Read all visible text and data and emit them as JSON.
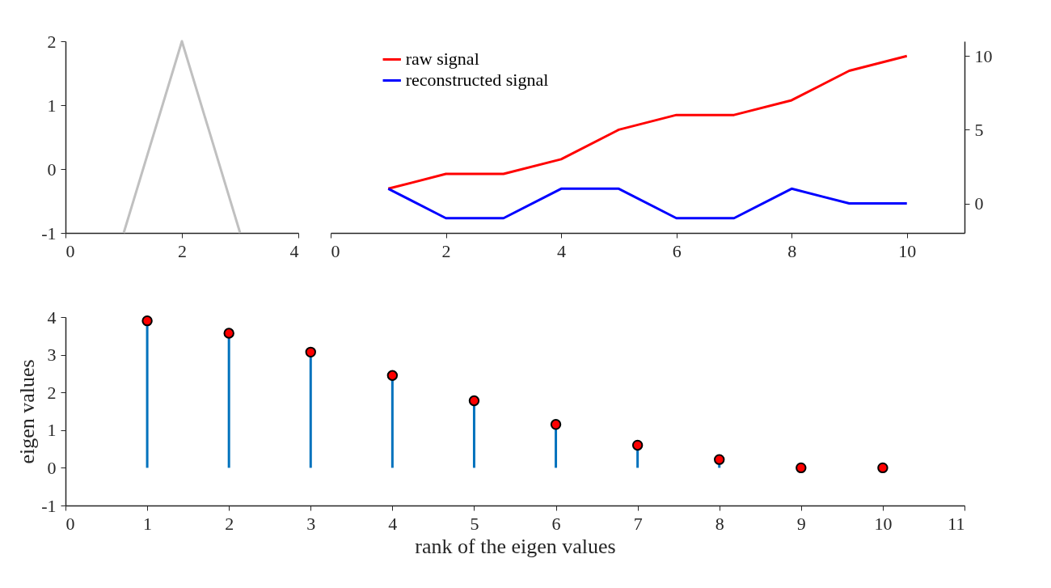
{
  "chart_data": [
    {
      "type": "line",
      "x": [
        1,
        2,
        3
      ],
      "series": [
        {
          "color": "#c0c0c0",
          "values": [
            -1,
            2,
            -1
          ]
        }
      ],
      "xlim": [
        0,
        4
      ],
      "xticks": [
        0,
        2,
        4
      ],
      "ylim": [
        -1,
        2
      ],
      "yticks": [
        -1,
        0,
        1,
        2
      ],
      "grid": false,
      "marker": "none",
      "line_style": "solid"
    },
    {
      "type": "line",
      "x": [
        1,
        2,
        3,
        4,
        5,
        6,
        7,
        8,
        9,
        10
      ],
      "series": [
        {
          "name": "raw signal",
          "color": "#ff0000",
          "values": [
            1,
            2,
            2,
            3,
            5,
            6,
            6,
            7,
            9,
            10
          ]
        },
        {
          "name": "reconstructed signal",
          "color": "#0000ff",
          "values": [
            1,
            -1,
            -1,
            1,
            1,
            -1,
            -1,
            1,
            0,
            0
          ]
        }
      ],
      "xlim": [
        0,
        11
      ],
      "xticks": [
        0,
        2,
        4,
        6,
        8,
        10
      ],
      "ylim": [
        -2,
        11
      ],
      "yticks": [
        0,
        5,
        10
      ],
      "grid": false,
      "legend": "top left",
      "marker": "none",
      "line_style": "solid"
    },
    {
      "type": "lollipop",
      "x": [
        1,
        2,
        3,
        4,
        5,
        6,
        7,
        8,
        9,
        10
      ],
      "series": [
        {
          "color": "#ff0000",
          "values": [
            3.9,
            3.57,
            3.07,
            2.45,
            1.78,
            1.15,
            0.6,
            0.22,
            0,
            0
          ]
        }
      ],
      "xlabel": "rank of the eigen values",
      "ylabel": "eigen values",
      "xlim": [
        0,
        11
      ],
      "xticks": [
        0,
        1,
        2,
        3,
        4,
        5,
        6,
        7,
        8,
        9,
        10,
        11
      ],
      "ylim": [
        -1,
        4
      ],
      "yticks": [
        -1,
        0,
        1,
        2,
        3,
        4
      ],
      "marker": "circle"
    }
  ]
}
